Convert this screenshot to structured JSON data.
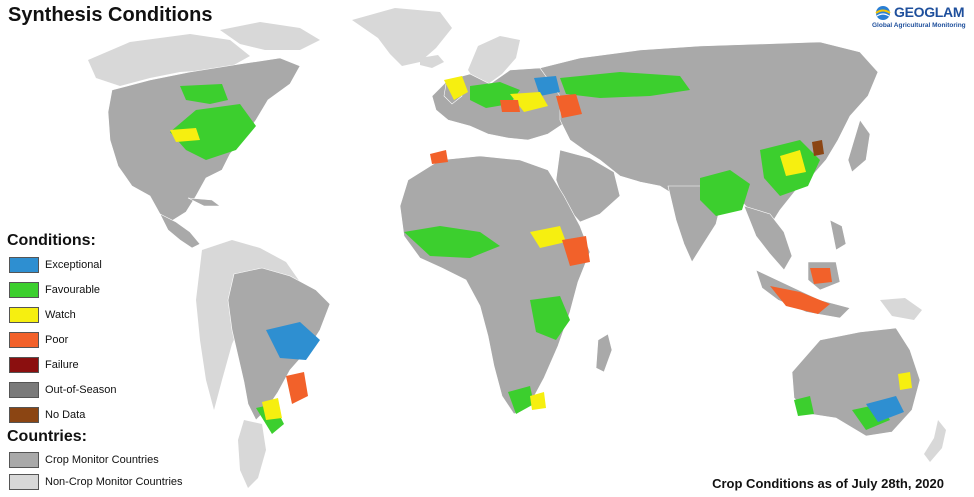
{
  "title": "Synthesis Conditions",
  "logo": {
    "name": "GEOGLAM",
    "subtitle": "Global Agricultural Monitoring"
  },
  "legend": {
    "conditions_heading": "Conditions:",
    "conditions": [
      {
        "label": "Exceptional",
        "color": "#2e8fd1"
      },
      {
        "label": "Favourable",
        "color": "#3ccf2e"
      },
      {
        "label": "Watch",
        "color": "#f6ef10"
      },
      {
        "label": "Poor",
        "color": "#f2612a"
      },
      {
        "label": "Failure",
        "color": "#8b0f0f"
      },
      {
        "label": "Out-of-Season",
        "color": "#7a7a7a"
      },
      {
        "label": "No Data",
        "color": "#8b4513"
      }
    ],
    "countries_heading": "Countries:",
    "countries": [
      {
        "label": "Crop Monitor Countries",
        "color": "#a9a9a9"
      },
      {
        "label": "Non-Crop Monitor Countries",
        "color": "#d8d8d8"
      }
    ]
  },
  "footer": "Crop Conditions as of July 28th, 2020",
  "colors": {
    "ocean": "#ffffff",
    "crop_monitor": "#a9a9a9",
    "non_crop_monitor": "#d8d8d8",
    "border": "#ffffff"
  }
}
